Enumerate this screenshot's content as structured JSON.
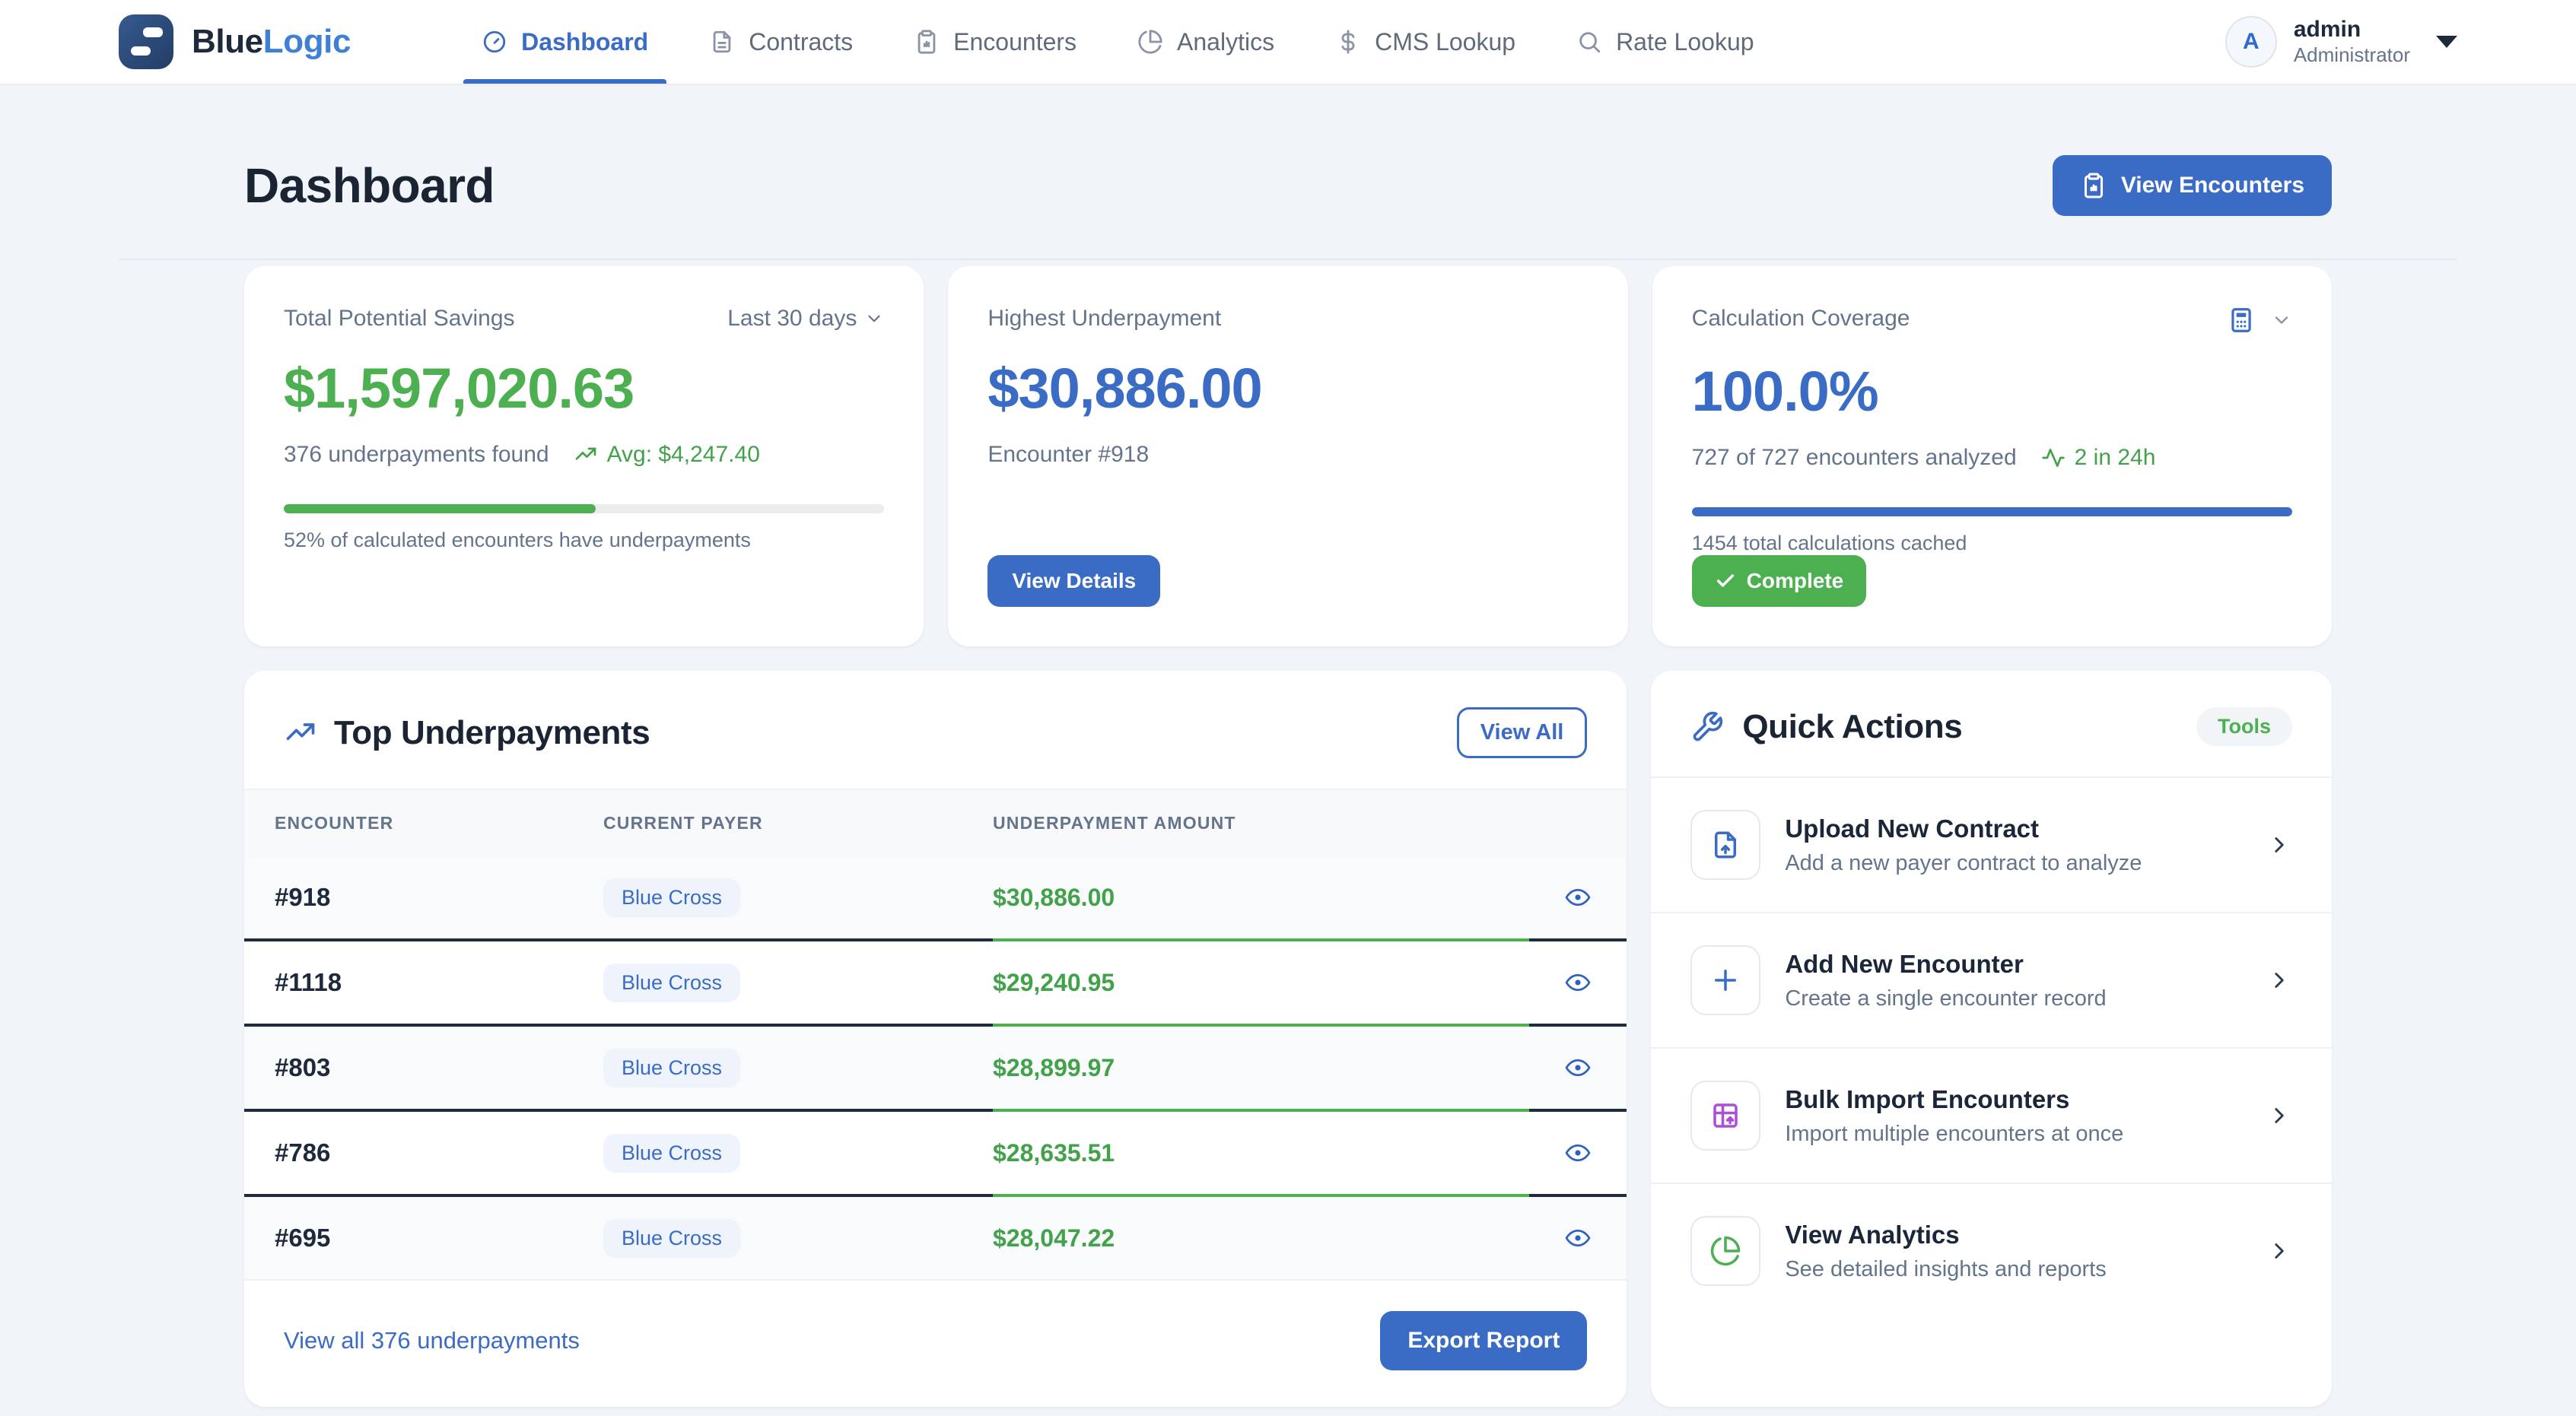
{
  "brand": {
    "name_primary": "Blue",
    "name_secondary": "Logic"
  },
  "nav": {
    "items": [
      {
        "label": "Dashboard",
        "icon": "gauge-icon",
        "active": true
      },
      {
        "label": "Contracts",
        "icon": "file-icon",
        "active": false
      },
      {
        "label": "Encounters",
        "icon": "clipboard-icon",
        "active": false
      },
      {
        "label": "Analytics",
        "icon": "pie-icon",
        "active": false
      },
      {
        "label": "CMS Lookup",
        "icon": "dollar-icon",
        "active": false
      },
      {
        "label": "Rate Lookup",
        "icon": "search-icon",
        "active": false
      }
    ]
  },
  "user": {
    "initial": "A",
    "name": "admin",
    "role": "Administrator"
  },
  "page": {
    "title": "Dashboard",
    "primary_action": "View Encounters"
  },
  "cards": {
    "savings": {
      "label": "Total Potential Savings",
      "period": "Last 30 days",
      "value": "$1,597,020.63",
      "found": "376 underpayments found",
      "avg": "Avg: $4,247.40",
      "progress_pct": 52,
      "caption": "52% of calculated encounters have underpayments"
    },
    "highest": {
      "label": "Highest Underpayment",
      "value": "$30,886.00",
      "encounter": "Encounter #918",
      "action": "View Details"
    },
    "coverage": {
      "label": "Calculation Coverage",
      "value": "100.0%",
      "analyzed": "727 of 727 encounters analyzed",
      "recent": "2 in 24h",
      "progress_pct": 100,
      "caption": "1454 total calculations cached",
      "status": "Complete"
    }
  },
  "underpayments": {
    "title": "Top Underpayments",
    "view_all": "View All",
    "columns": [
      "ENCOUNTER",
      "CURRENT PAYER",
      "UNDERPAYMENT AMOUNT"
    ],
    "rows": [
      {
        "encounter": "#918",
        "payer": "Blue Cross",
        "amount": "$30,886.00"
      },
      {
        "encounter": "#1118",
        "payer": "Blue Cross",
        "amount": "$29,240.95"
      },
      {
        "encounter": "#803",
        "payer": "Blue Cross",
        "amount": "$28,899.97"
      },
      {
        "encounter": "#786",
        "payer": "Blue Cross",
        "amount": "$28,635.51"
      },
      {
        "encounter": "#695",
        "payer": "Blue Cross",
        "amount": "$28,047.22"
      }
    ],
    "footer_link": "View all 376 underpayments",
    "export_label": "Export Report"
  },
  "quick_actions": {
    "title": "Quick Actions",
    "badge": "Tools",
    "items": [
      {
        "title": "Upload New Contract",
        "subtitle": "Add a new payer contract to analyze",
        "icon": "file-up-icon",
        "color": "#3b6cc5"
      },
      {
        "title": "Add New Encounter",
        "subtitle": "Create a single encounter record",
        "icon": "plus-icon",
        "color": "#3b6cc5"
      },
      {
        "title": "Bulk Import Encounters",
        "subtitle": "Import multiple encounters at once",
        "icon": "table-import-icon",
        "color": "#ab4fd8"
      },
      {
        "title": "View Analytics",
        "subtitle": "See detailed insights and reports",
        "icon": "pie-icon",
        "color": "#4caf50"
      }
    ]
  },
  "colors": {
    "accent_blue": "#3b6cc5",
    "green": "#4caf50",
    "green_text": "#41a24a",
    "purple": "#ab4fd8",
    "navy": "#1b2738",
    "page_bg": "#f1f4f8"
  }
}
